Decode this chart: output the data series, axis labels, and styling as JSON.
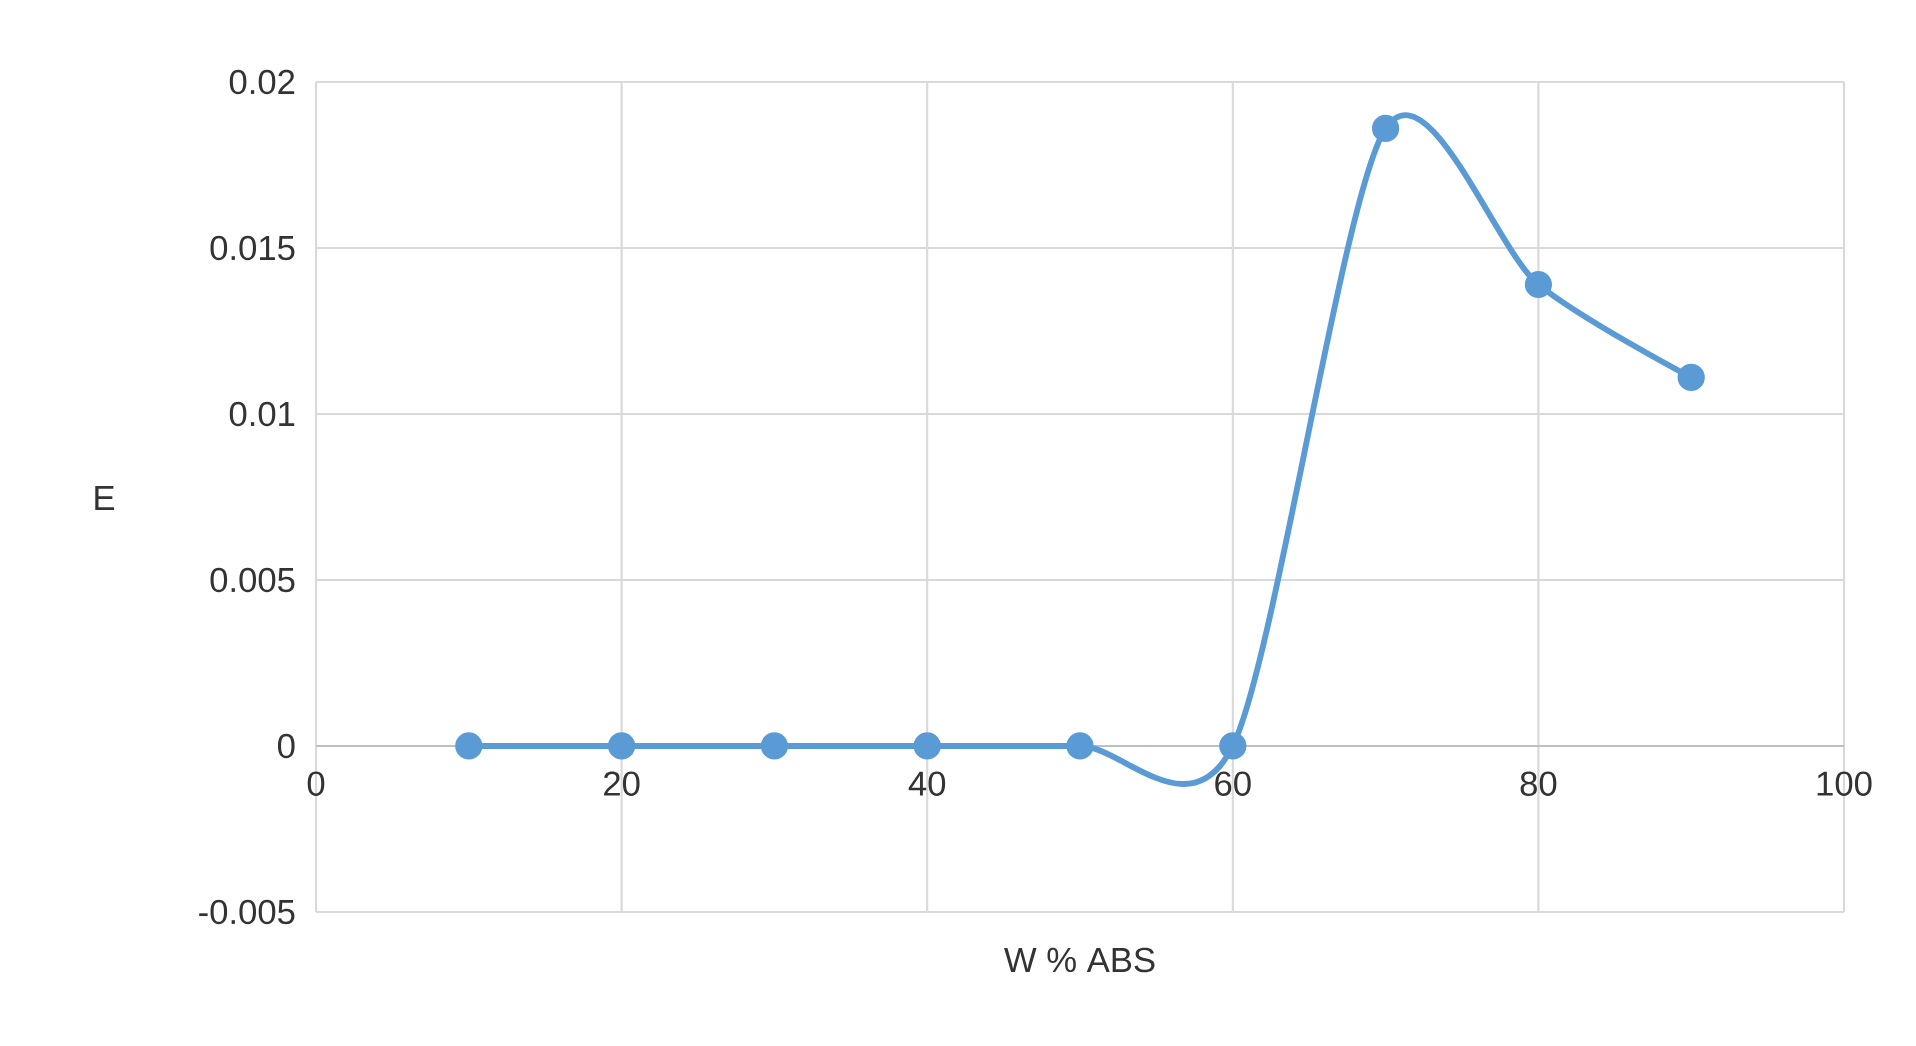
{
  "chart_data": {
    "type": "line",
    "xlabel": "W % ABS",
    "ylabel": "E",
    "x": [
      10,
      20,
      30,
      40,
      50,
      60,
      70,
      80,
      90
    ],
    "series": [
      {
        "color": "#5b9bd5",
        "values": [
          0,
          0,
          0,
          0,
          0,
          0,
          0.0186,
          0.0139,
          0.0111
        ]
      }
    ],
    "xlim": [
      0,
      100
    ],
    "xticks": [
      0,
      20,
      40,
      60,
      80,
      100
    ],
    "ylim": [
      -0.005,
      0.02
    ],
    "yticks": [
      -0.005,
      0,
      0.005,
      0.01,
      0.015,
      0.02
    ],
    "grid": true,
    "marker": "circle",
    "line_style": "solid"
  }
}
